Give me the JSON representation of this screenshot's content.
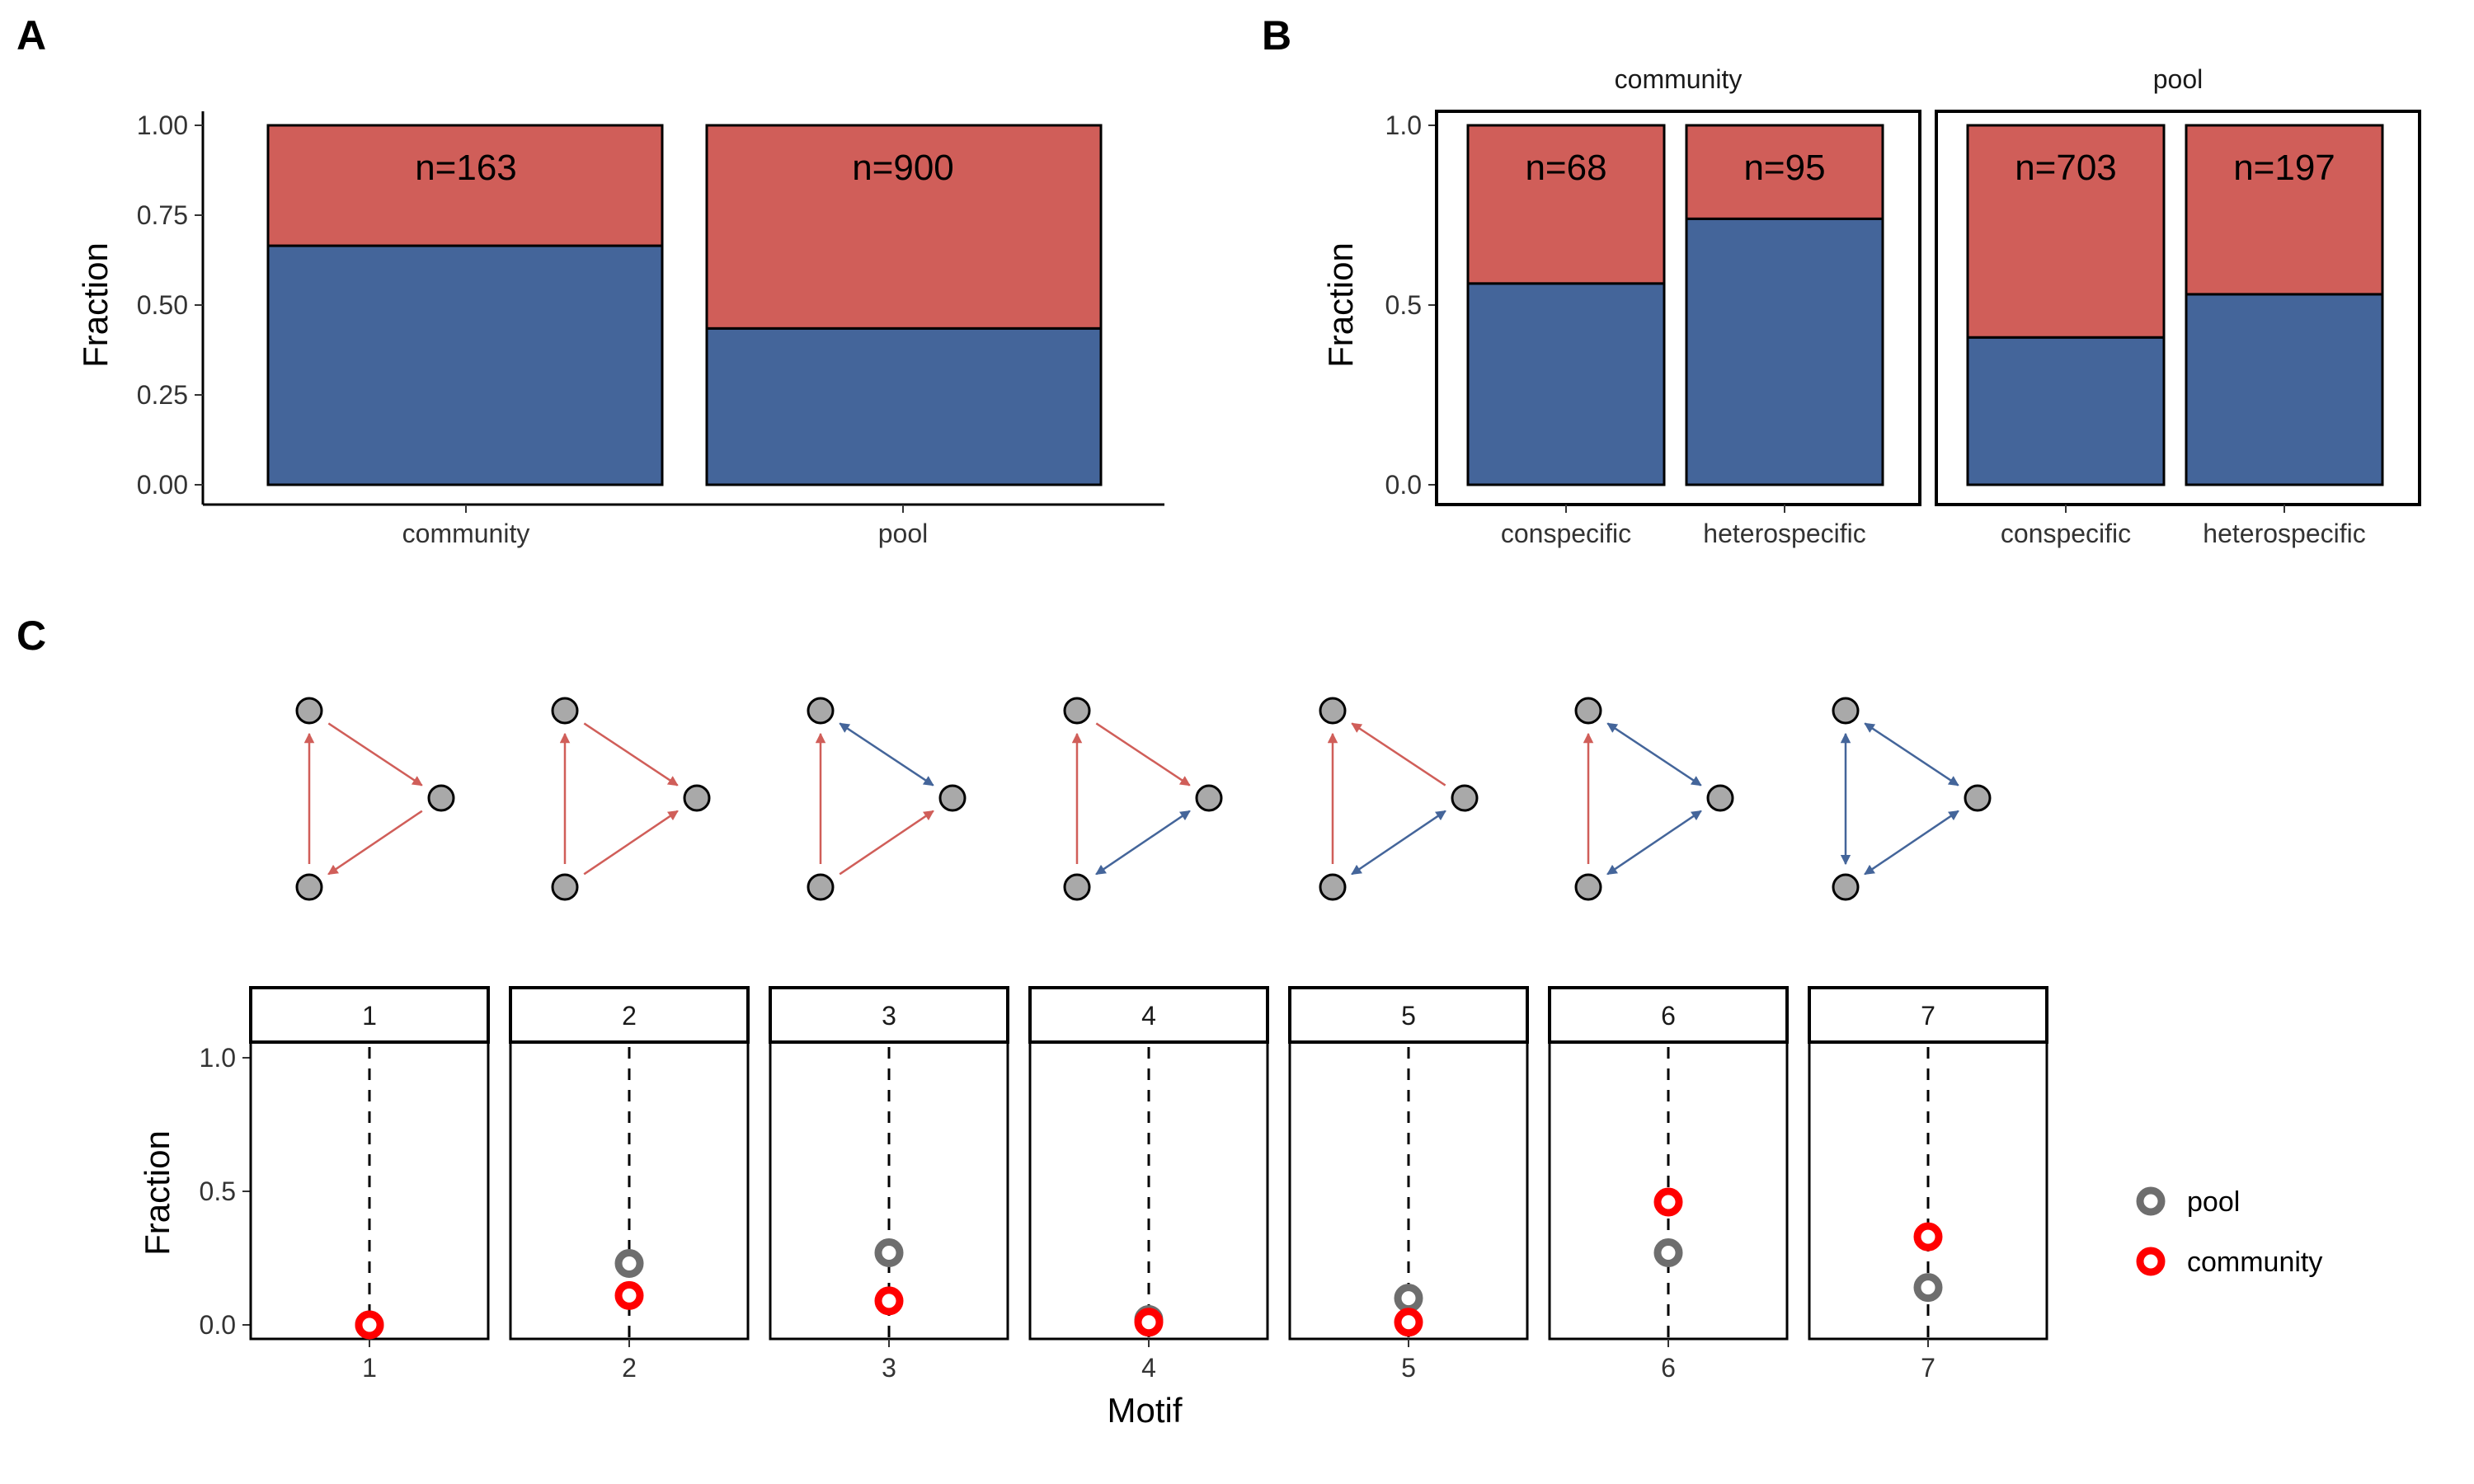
{
  "colors": {
    "red": "#d05e59",
    "blue": "#44659a",
    "pool_point": "#6e6e6e",
    "community_point": "#ff0000",
    "node_fill": "#a9a9a9"
  },
  "panel_letters": [
    "A",
    "B",
    "C"
  ],
  "chart_data": [
    {
      "type": "bar",
      "stacked": true,
      "categories": [
        "community",
        "pool"
      ],
      "series": [
        {
          "color": "blue",
          "values": [
            0.665,
            0.435
          ]
        },
        {
          "color": "red",
          "values": [
            0.335,
            0.565
          ]
        }
      ],
      "bar_labels": [
        "n=163",
        "n=900"
      ],
      "ylabel": "Fraction",
      "ylim": [
        0,
        1
      ],
      "yticks": [
        "0.00",
        "0.25",
        "0.50",
        "0.75",
        "1.00"
      ],
      "grid": false
    },
    {
      "type": "bar",
      "stacked": true,
      "facets": [
        {
          "strip": "community",
          "categories": [
            "conspecific",
            "heterospecific"
          ],
          "series": [
            {
              "color": "blue",
              "values": [
                0.56,
                0.74
              ]
            },
            {
              "color": "red",
              "values": [
                0.44,
                0.26
              ]
            }
          ],
          "bar_labels": [
            "n=68",
            "n=95"
          ]
        },
        {
          "strip": "pool",
          "categories": [
            "conspecific",
            "heterospecific"
          ],
          "series": [
            {
              "color": "blue",
              "values": [
                0.41,
                0.53
              ]
            },
            {
              "color": "red",
              "values": [
                0.59,
                0.47
              ]
            }
          ],
          "bar_labels": [
            "n=703",
            "n=197"
          ]
        }
      ],
      "ylabel": "Fraction",
      "ylim": [
        0,
        1
      ],
      "yticks": [
        "0.0",
        "0.5",
        "1.0"
      ],
      "grid": false
    },
    {
      "type": "scatter",
      "facets": [
        "1",
        "2",
        "3",
        "4",
        "5",
        "6",
        "7"
      ],
      "xticks": [
        "1",
        "2",
        "3",
        "4",
        "5",
        "6",
        "7"
      ],
      "xlabel": "Motif",
      "ylabel": "Fraction",
      "ylim": [
        0,
        1
      ],
      "yticks": [
        "0.0",
        "0.5",
        "1.0"
      ],
      "series": [
        {
          "name": "pool",
          "color": "pool_point",
          "values": [
            0.0,
            0.23,
            0.27,
            0.02,
            0.1,
            0.27,
            0.14
          ]
        },
        {
          "name": "community",
          "color": "community_point",
          "values": [
            0.0,
            0.11,
            0.09,
            0.01,
            0.01,
            0.46,
            0.33
          ]
        }
      ],
      "legend": {
        "position": "right",
        "entries": [
          "pool",
          "community"
        ]
      },
      "grid": false
    }
  ],
  "motifs": [
    {
      "edges": [
        {
          "pair": "bottom-top",
          "color": "red",
          "dir": "to-top"
        },
        {
          "pair": "top-right",
          "color": "red",
          "dir": "to-right"
        },
        {
          "pair": "right-bottom",
          "color": "red",
          "dir": "to-bottom"
        }
      ]
    },
    {
      "edges": [
        {
          "pair": "bottom-top",
          "color": "red",
          "dir": "to-top"
        },
        {
          "pair": "top-right",
          "color": "red",
          "dir": "to-right"
        },
        {
          "pair": "bottom-right",
          "color": "red",
          "dir": "to-right"
        }
      ]
    },
    {
      "edges": [
        {
          "pair": "bottom-top",
          "color": "red",
          "dir": "to-top"
        },
        {
          "pair": "top-right",
          "color": "blue",
          "dir": "both"
        },
        {
          "pair": "bottom-right",
          "color": "red",
          "dir": "to-right"
        }
      ]
    },
    {
      "edges": [
        {
          "pair": "bottom-top",
          "color": "red",
          "dir": "to-top"
        },
        {
          "pair": "top-right",
          "color": "red",
          "dir": "to-right"
        },
        {
          "pair": "bottom-right",
          "color": "blue",
          "dir": "both"
        }
      ]
    },
    {
      "edges": [
        {
          "pair": "bottom-top",
          "color": "red",
          "dir": "to-top"
        },
        {
          "pair": "right-top",
          "color": "red",
          "dir": "to-top"
        },
        {
          "pair": "bottom-right",
          "color": "blue",
          "dir": "both"
        }
      ]
    },
    {
      "edges": [
        {
          "pair": "bottom-top",
          "color": "red",
          "dir": "to-top"
        },
        {
          "pair": "top-right",
          "color": "blue",
          "dir": "both"
        },
        {
          "pair": "bottom-right",
          "color": "blue",
          "dir": "both"
        }
      ]
    },
    {
      "edges": [
        {
          "pair": "bottom-top",
          "color": "blue",
          "dir": "both"
        },
        {
          "pair": "top-right",
          "color": "blue",
          "dir": "both"
        },
        {
          "pair": "bottom-right",
          "color": "blue",
          "dir": "both"
        }
      ]
    }
  ]
}
